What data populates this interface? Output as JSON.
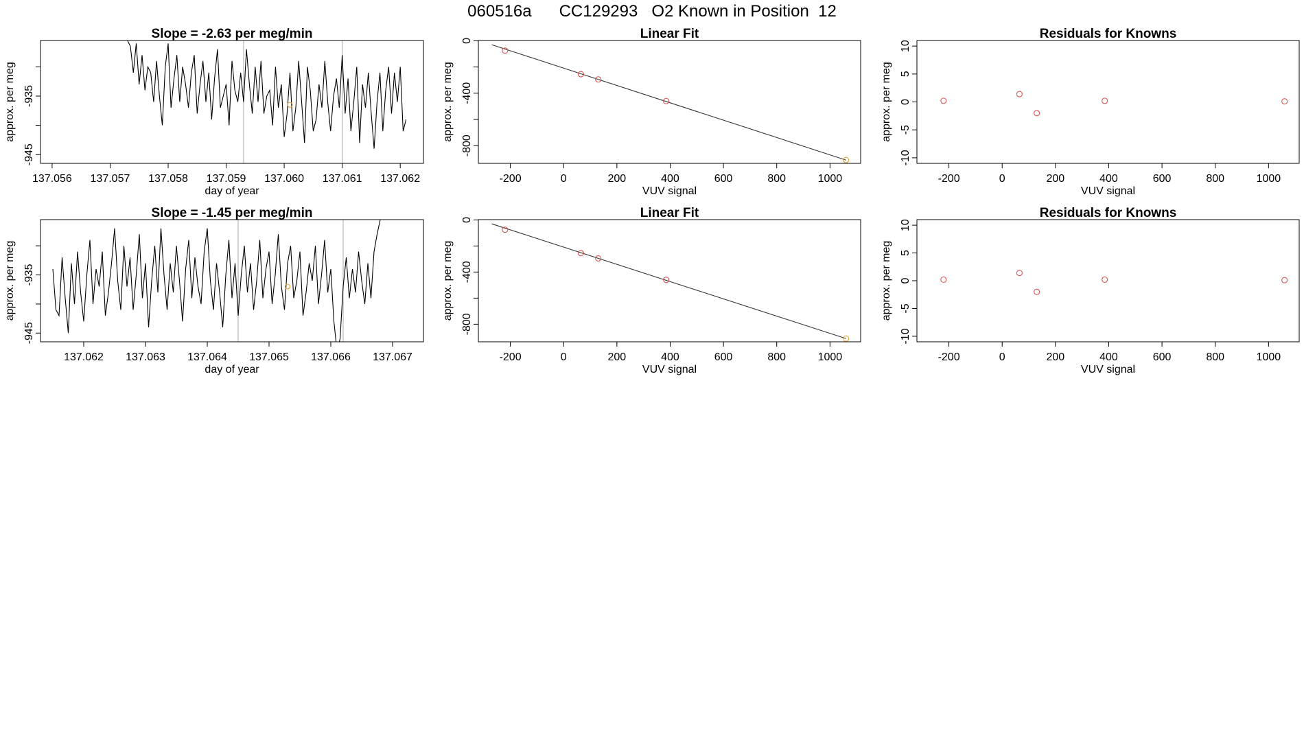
{
  "figure": {
    "title": "060516a      CC129293   O2 Known in Position  12"
  },
  "colors": {
    "line": "#000000",
    "frame": "#000000",
    "vline": "#b8b8b8",
    "known_point": "#d9534f",
    "sample_point": "#e8a33a",
    "fit_line": "#333333"
  },
  "chart_data": [
    {
      "id": "timeseries-1",
      "type": "line",
      "title": "Slope =  -2.63  per meg/min",
      "xlabel": "day of year",
      "ylabel": "approx. per meg",
      "xlim": [
        137.0558,
        137.0624
      ],
      "ylim": [
        -946.5,
        -925.5
      ],
      "xticks": [
        137.056,
        137.057,
        137.058,
        137.059,
        137.06,
        137.061,
        137.062
      ],
      "xtick_labels": [
        "137.056",
        "137.057",
        "137.058",
        "137.059",
        "137.060",
        "137.061",
        "137.062"
      ],
      "yticks": [
        -945,
        -940,
        -935,
        -930
      ],
      "ytick_labels": [
        "-945",
        "",
        "-935",
        ""
      ],
      "vlines": [
        137.0593,
        137.061
      ],
      "series_start": 137.0573,
      "series_end": 137.0621,
      "series_base": -936.5,
      "series": [
        {
          "name": "signal",
          "x": [
            137.0573,
            137.05735,
            137.0574,
            137.05745,
            137.0575,
            137.05755,
            137.0576,
            137.05765,
            137.0577,
            137.05775,
            137.0578,
            137.05785,
            137.0579,
            137.05795,
            137.058,
            137.05805,
            137.0581,
            137.05815,
            137.0582,
            137.05825,
            137.0583,
            137.05835,
            137.0584,
            137.05845,
            137.0585,
            137.05855,
            137.0586,
            137.05865,
            137.0587,
            137.05875,
            137.0588,
            137.05885,
            137.0589,
            137.05895,
            137.059,
            137.05905,
            137.0591,
            137.05915,
            137.0592,
            137.05925,
            137.0593,
            137.05935,
            137.0594,
            137.05945,
            137.0595,
            137.05955,
            137.0596,
            137.05965,
            137.0597,
            137.05975,
            137.0598,
            137.05985,
            137.0599,
            137.05995,
            137.06,
            137.06005,
            137.0601,
            137.06015,
            137.0602,
            137.06025,
            137.0603,
            137.06035,
            137.0604,
            137.06045,
            137.0605,
            137.06055,
            137.0606,
            137.06065,
            137.0607,
            137.06075,
            137.0608,
            137.06085,
            137.0609,
            137.06095,
            137.061,
            137.06105,
            137.0611,
            137.06115,
            137.0612,
            137.06125,
            137.0613,
            137.06135,
            137.0614,
            137.06145,
            137.0615,
            137.06155,
            137.0616,
            137.06165,
            137.0617,
            137.06175,
            137.0618,
            137.06185,
            137.0619,
            137.06195,
            137.062,
            137.06205,
            137.0621
          ],
          "values": [
            -925.5,
            -926.5,
            -931,
            -926,
            -933,
            -928,
            -934,
            -930,
            -931,
            -936,
            -929,
            -935,
            -940,
            -930,
            -926,
            -937,
            -932,
            -928,
            -936,
            -930,
            -933,
            -937,
            -931,
            -928,
            -938,
            -933,
            -929,
            -936,
            -931,
            -939,
            -932,
            -927,
            -937,
            -935,
            -933,
            -940,
            -929,
            -934,
            -936,
            -931,
            -936,
            -927,
            -933,
            -938,
            -930,
            -936,
            -929,
            -938,
            -935,
            -934,
            -940,
            -930,
            -937,
            -933,
            -942,
            -938,
            -931,
            -941,
            -937,
            -929,
            -936,
            -943,
            -930,
            -934,
            -941,
            -939,
            -933,
            -937,
            -929,
            -936,
            -941,
            -935,
            -932,
            -937,
            -928,
            -938,
            -932,
            -941,
            -936,
            -930,
            -943,
            -933,
            -937,
            -931,
            -938,
            -944,
            -936,
            -931,
            -941,
            -934,
            -930,
            -938,
            -931,
            -936,
            -930,
            -941,
            -939
          ]
        }
      ],
      "markers": [
        {
          "x": 137.0601,
          "y": -936.5
        }
      ]
    },
    {
      "id": "fit-1",
      "type": "scatter",
      "title": "Linear Fit",
      "xlabel": "VUV signal",
      "ylabel": "approx. per meg",
      "xlim": [
        -320,
        1115
      ],
      "ylim": [
        -935,
        2
      ],
      "xticks": [
        -200,
        0,
        200,
        400,
        600,
        800,
        1000
      ],
      "xtick_labels": [
        "-200",
        "0",
        "200",
        "400",
        "600",
        "800",
        "1000"
      ],
      "yticks": [
        0,
        -200,
        -400,
        -600,
        -800
      ],
      "ytick_labels": [
        "0",
        "",
        "-400",
        "",
        "-800"
      ],
      "fit_line": {
        "x": [
          -270,
          1060
        ],
        "y": [
          -30,
          -910
        ]
      },
      "knowns": {
        "x": [
          -220,
          65,
          130,
          385
        ],
        "y": [
          -75,
          -255,
          -295,
          -460
        ]
      },
      "sample": {
        "x": [
          1060
        ],
        "y": [
          -910
        ]
      }
    },
    {
      "id": "residuals-1",
      "type": "scatter",
      "title": "Residuals for Knowns",
      "xlabel": "VUV signal",
      "ylabel": "approx. per meg",
      "xlim": [
        -320,
        1115
      ],
      "ylim": [
        -11,
        11
      ],
      "xticks": [
        -200,
        0,
        200,
        400,
        600,
        800,
        1000
      ],
      "xtick_labels": [
        "-200",
        "0",
        "200",
        "400",
        "600",
        "800",
        "1000"
      ],
      "yticks": [
        10,
        5,
        0,
        -5,
        -10
      ],
      "ytick_labels": [
        "10",
        "5",
        "0",
        "-5",
        "-10"
      ],
      "knowns": {
        "x": [
          -220,
          65,
          130,
          385,
          1060
        ],
        "y": [
          0.2,
          1.4,
          -2.0,
          0.2,
          0.1
        ]
      }
    },
    {
      "id": "timeseries-2",
      "type": "line",
      "title": "Slope =  -1.45  per meg/min",
      "xlabel": "day of year",
      "ylabel": "approx. per meg",
      "xlim": [
        137.0613,
        137.0675
      ],
      "ylim": [
        -946.5,
        -925.5
      ],
      "xticks": [
        137.062,
        137.063,
        137.064,
        137.065,
        137.066,
        137.067
      ],
      "xtick_labels": [
        "137.062",
        "137.063",
        "137.064",
        "137.065",
        "137.066",
        "137.067"
      ],
      "yticks": [
        -945,
        -940,
        -935,
        -930
      ],
      "ytick_labels": [
        "-945",
        "",
        "-935",
        ""
      ],
      "vlines": [
        137.0645,
        137.0662
      ],
      "series": [
        {
          "name": "signal",
          "x": [
            137.0615,
            137.06155,
            137.0616,
            137.06165,
            137.0617,
            137.06175,
            137.0618,
            137.06185,
            137.0619,
            137.06195,
            137.062,
            137.06205,
            137.0621,
            137.06215,
            137.0622,
            137.06225,
            137.0623,
            137.06235,
            137.0624,
            137.06245,
            137.0625,
            137.06255,
            137.0626,
            137.06265,
            137.0627,
            137.06275,
            137.0628,
            137.06285,
            137.0629,
            137.06295,
            137.063,
            137.06305,
            137.0631,
            137.06315,
            137.0632,
            137.06325,
            137.0633,
            137.06335,
            137.0634,
            137.06345,
            137.0635,
            137.06355,
            137.0636,
            137.06365,
            137.0637,
            137.06375,
            137.0638,
            137.06385,
            137.0639,
            137.06395,
            137.064,
            137.06405,
            137.0641,
            137.06415,
            137.0642,
            137.06425,
            137.0643,
            137.06435,
            137.0644,
            137.06445,
            137.0645,
            137.06455,
            137.0646,
            137.06465,
            137.0647,
            137.06475,
            137.0648,
            137.06485,
            137.0649,
            137.06495,
            137.065,
            137.06505,
            137.0651,
            137.06515,
            137.0652,
            137.06525,
            137.0653,
            137.06535,
            137.0654,
            137.06545,
            137.0655,
            137.06555,
            137.0656,
            137.06565,
            137.0657,
            137.06575,
            137.0658,
            137.06585,
            137.0659,
            137.06595,
            137.066,
            137.06605,
            137.0661,
            137.06615,
            137.0662,
            137.06625,
            137.0663,
            137.06635,
            137.0664,
            137.06645,
            137.0665,
            137.06655,
            137.0666,
            137.06665,
            137.0667,
            137.06675,
            137.0668,
            137.06685,
            137.0669
          ],
          "values": [
            -934,
            -941,
            -942,
            -932,
            -939,
            -945,
            -933,
            -940,
            -931,
            -938,
            -943,
            -935,
            -929,
            -940,
            -934,
            -937,
            -931,
            -942,
            -938,
            -933,
            -927,
            -936,
            -941,
            -930,
            -937,
            -932,
            -941,
            -935,
            -928,
            -939,
            -933,
            -944,
            -936,
            -930,
            -938,
            -927,
            -935,
            -941,
            -933,
            -938,
            -930,
            -936,
            -943,
            -934,
            -929,
            -939,
            -932,
            -937,
            -940,
            -931,
            -927,
            -936,
            -941,
            -933,
            -938,
            -944,
            -935,
            -929,
            -939,
            -933,
            -942,
            -935,
            -930,
            -938,
            -933,
            -941,
            -936,
            -929,
            -939,
            -934,
            -931,
            -940,
            -935,
            -928,
            -937,
            -941,
            -933,
            -930,
            -939,
            -936,
            -931,
            -942,
            -938,
            -933,
            -936,
            -930,
            -940,
            -935,
            -929,
            -938,
            -934,
            -943,
            -948,
            -946,
            -937,
            -932,
            -939,
            -934,
            -938,
            -931,
            -936,
            -940,
            -933,
            -939,
            -931,
            -928,
            -925.5,
            -925.5,
            -925.5
          ]
        }
      ],
      "markers": [
        {
          "x": 137.0653,
          "y": -937
        }
      ]
    },
    {
      "id": "fit-2",
      "type": "scatter",
      "title": "Linear Fit",
      "xlabel": "VUV signal",
      "ylabel": "approx. per meg",
      "xlim": [
        -320,
        1115
      ],
      "ylim": [
        -935,
        2
      ],
      "xticks": [
        -200,
        0,
        200,
        400,
        600,
        800,
        1000
      ],
      "xtick_labels": [
        "-200",
        "0",
        "200",
        "400",
        "600",
        "800",
        "1000"
      ],
      "yticks": [
        0,
        -200,
        -400,
        -600,
        -800
      ],
      "ytick_labels": [
        "0",
        "",
        "-400",
        "",
        "-800"
      ],
      "fit_line": {
        "x": [
          -270,
          1060
        ],
        "y": [
          -30,
          -910
        ]
      },
      "knowns": {
        "x": [
          -220,
          65,
          130,
          385
        ],
        "y": [
          -75,
          -255,
          -295,
          -460
        ]
      },
      "sample": {
        "x": [
          1060
        ],
        "y": [
          -910
        ]
      }
    },
    {
      "id": "residuals-2",
      "type": "scatter",
      "title": "Residuals for Knowns",
      "xlabel": "VUV signal",
      "ylabel": "approx. per meg",
      "xlim": [
        -320,
        1115
      ],
      "ylim": [
        -11,
        11
      ],
      "xticks": [
        -200,
        0,
        200,
        400,
        600,
        800,
        1000
      ],
      "xtick_labels": [
        "-200",
        "0",
        "200",
        "400",
        "600",
        "800",
        "1000"
      ],
      "yticks": [
        10,
        5,
        0,
        -5,
        -10
      ],
      "ytick_labels": [
        "10",
        "5",
        "0",
        "-5",
        "-10"
      ],
      "knowns": {
        "x": [
          -220,
          65,
          130,
          385,
          1060
        ],
        "y": [
          0.2,
          1.4,
          -2.0,
          0.2,
          0.1
        ]
      }
    }
  ]
}
